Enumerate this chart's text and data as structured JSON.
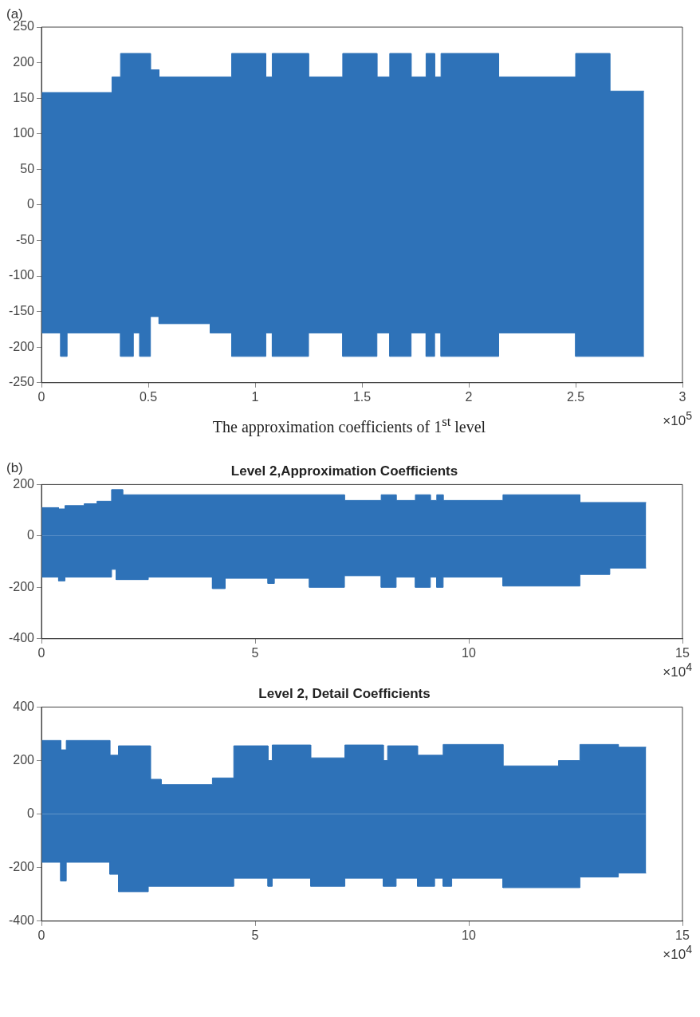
{
  "chart_data": [
    {
      "type": "area",
      "xlabel": "The approximation coefficients of 1$^{st}$ level",
      "annotations": [
        "(a)",
        "×10$^{5}$"
      ],
      "xlim": [
        0,
        3
      ],
      "ylim": [
        -250,
        250
      ],
      "xticks": [
        0,
        0.5,
        1,
        1.5,
        2,
        2.5,
        3
      ],
      "yticks": [
        -250,
        -200,
        -150,
        -100,
        -50,
        0,
        50,
        100,
        150,
        200,
        250
      ],
      "grid": false,
      "series": [
        {
          "color": "#2e72b8",
          "x": [
            0,
            0.33,
            0.33,
            0.37,
            0.37,
            0.51,
            0.51,
            0.55,
            0.55,
            0.89,
            0.89,
            1.05,
            1.05,
            1.08,
            1.08,
            1.25,
            1.25,
            1.41,
            1.41,
            1.57,
            1.57,
            1.63,
            1.63,
            1.73,
            1.73,
            1.8,
            1.8,
            1.84,
            1.84,
            1.87,
            1.87,
            2.14,
            2.14,
            2.5,
            2.5,
            2.66,
            2.66,
            2.82
          ],
          "values": [
            158,
            158,
            180,
            180,
            213,
            213,
            190,
            190,
            180,
            180,
            213,
            213,
            180,
            180,
            213,
            213,
            180,
            180,
            213,
            213,
            180,
            180,
            213,
            213,
            180,
            180,
            213,
            213,
            180,
            180,
            213,
            213,
            180,
            180,
            213,
            213,
            160,
            160
          ]
        },
        {
          "color": "#2e72b8",
          "x": [
            0,
            0.09,
            0.09,
            0.12,
            0.12,
            0.37,
            0.37,
            0.43,
            0.43,
            0.46,
            0.46,
            0.51,
            0.51,
            0.55,
            0.55,
            0.79,
            0.79,
            0.89,
            0.89,
            1.05,
            1.05,
            1.08,
            1.08,
            1.25,
            1.25,
            1.41,
            1.41,
            1.57,
            1.57,
            1.63,
            1.63,
            1.73,
            1.73,
            1.8,
            1.8,
            1.84,
            1.84,
            1.87,
            1.87,
            2.14,
            2.14,
            2.5,
            2.5,
            2.82
          ],
          "values": [
            -180,
            -180,
            -213,
            -213,
            -180,
            -180,
            -213,
            -213,
            -180,
            -180,
            -213,
            -213,
            -157,
            -157,
            -167,
            -167,
            -180,
            -180,
            -213,
            -213,
            -180,
            -180,
            -213,
            -213,
            -180,
            -180,
            -213,
            -213,
            -180,
            -180,
            -213,
            -213,
            -180,
            -180,
            -213,
            -213,
            -180,
            -180,
            -213,
            -213,
            -180,
            -180,
            -213,
            -213
          ]
        }
      ]
    },
    {
      "type": "area",
      "title": "Level 2,Approximation Coefficients",
      "annotations": [
        "(b)",
        "×10$^{4}$"
      ],
      "xlim": [
        0,
        15
      ],
      "ylim": [
        -400,
        200
      ],
      "xticks": [
        0,
        5,
        10,
        15
      ],
      "yticks": [
        -400,
        -200,
        0,
        200
      ],
      "grid": false,
      "series": [
        {
          "color": "#2e72b8",
          "x": [
            0,
            0.4,
            0.4,
            0.55,
            0.55,
            1,
            1,
            1.3,
            1.3,
            1.64,
            1.64,
            1.9,
            1.9,
            7.09,
            7.09,
            7.95,
            7.95,
            8.3,
            8.3,
            8.75,
            8.75,
            9.1,
            9.1,
            9.25,
            9.25,
            9.4,
            9.4,
            10.8,
            10.8,
            12.6,
            12.6,
            14.15
          ],
          "values": [
            110,
            110,
            105,
            105,
            118,
            118,
            125,
            125,
            135,
            135,
            180,
            180,
            160,
            160,
            138,
            138,
            160,
            160,
            138,
            138,
            160,
            160,
            138,
            138,
            160,
            160,
            138,
            138,
            160,
            160,
            130,
            130
          ]
        },
        {
          "color": "#2e72b8",
          "x": [
            0,
            0.4,
            0.4,
            0.55,
            0.55,
            1.64,
            1.64,
            1.75,
            1.75,
            2.5,
            2.5,
            4,
            4,
            4.3,
            4.3,
            5.3,
            5.3,
            5.45,
            5.45,
            6.27,
            6.27,
            7.09,
            7.09,
            7.95,
            7.95,
            8.3,
            8.3,
            8.75,
            8.75,
            9.1,
            9.1,
            9.25,
            9.25,
            9.4,
            9.4,
            10.8,
            10.8,
            12.6,
            12.6,
            13.3,
            13.3,
            14.15
          ],
          "values": [
            -160,
            -160,
            -175,
            -175,
            -160,
            -160,
            -130,
            -130,
            -170,
            -170,
            -160,
            -160,
            -205,
            -205,
            -165,
            -165,
            -185,
            -185,
            -165,
            -165,
            -200,
            -200,
            -155,
            -155,
            -200,
            -200,
            -160,
            -160,
            -200,
            -200,
            -160,
            -160,
            -200,
            -200,
            -160,
            -160,
            -195,
            -195,
            -150,
            -150,
            -125,
            -125
          ]
        }
      ]
    },
    {
      "type": "area",
      "title": "Level 2, Detail Coefficients",
      "annotations": [
        "×10$^{4}$"
      ],
      "xlim": [
        0,
        15
      ],
      "ylim": [
        -400,
        400
      ],
      "xticks": [
        0,
        5,
        10,
        15
      ],
      "yticks": [
        -400,
        -200,
        0,
        200,
        400
      ],
      "grid": false,
      "series": [
        {
          "color": "#2e72b8",
          "x": [
            0,
            0.45,
            0.45,
            0.58,
            0.58,
            1.6,
            1.6,
            1.8,
            1.8,
            2.55,
            2.55,
            2.8,
            2.8,
            4,
            4,
            4.5,
            4.5,
            5.3,
            5.3,
            5.4,
            5.4,
            6.3,
            6.3,
            7.1,
            7.1,
            8,
            8,
            8.1,
            8.1,
            8.8,
            8.8,
            9.4,
            9.4,
            10.8,
            10.8,
            12.1,
            12.1,
            12.6,
            12.6,
            13.5,
            13.5,
            14.15
          ],
          "values": [
            275,
            275,
            240,
            240,
            275,
            275,
            220,
            220,
            255,
            255,
            130,
            130,
            110,
            110,
            135,
            135,
            255,
            255,
            200,
            200,
            258,
            258,
            210,
            210,
            258,
            258,
            200,
            200,
            255,
            255,
            220,
            220,
            260,
            260,
            180,
            180,
            200,
            200,
            260,
            260,
            250,
            250
          ]
        },
        {
          "color": "#2e72b8",
          "x": [
            0,
            0.45,
            0.45,
            0.58,
            0.58,
            1.6,
            1.6,
            1.8,
            1.8,
            2.5,
            2.5,
            4.5,
            4.5,
            5.3,
            5.3,
            5.4,
            5.4,
            6.3,
            6.3,
            7.1,
            7.1,
            8,
            8,
            8.3,
            8.3,
            8.8,
            8.8,
            9.2,
            9.2,
            9.4,
            9.4,
            9.6,
            9.6,
            10.8,
            10.8,
            12.6,
            12.6,
            13.5,
            13.5,
            14.15
          ],
          "values": [
            -180,
            -180,
            -250,
            -250,
            -180,
            -180,
            -225,
            -225,
            -290,
            -290,
            -270,
            -270,
            -240,
            -240,
            -270,
            -270,
            -240,
            -240,
            -270,
            -270,
            -240,
            -240,
            -270,
            -270,
            -240,
            -240,
            -270,
            -270,
            -240,
            -240,
            -270,
            -270,
            -240,
            -240,
            -275,
            -275,
            -235,
            -235,
            -220,
            -220
          ]
        }
      ]
    }
  ]
}
